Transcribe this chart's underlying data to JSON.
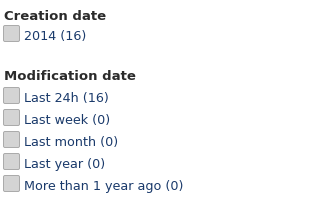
{
  "background_color": "#ffffff",
  "section1_header": "Creation date",
  "section1_items": [
    {
      "label": "2014 (16)"
    }
  ],
  "section2_header": "Modification date",
  "section2_items": [
    {
      "label": "Last 24h (16)"
    },
    {
      "label": "Last week (0)"
    },
    {
      "label": "Last month (0)"
    },
    {
      "label": "Last year (0)"
    },
    {
      "label": "More than 1 year ago (0)"
    }
  ],
  "header_color": "#2b2b2b",
  "item_color": "#1a3a6b",
  "checkbox_fill": "#d4d4d4",
  "checkbox_edge": "#aaaaaa",
  "header_fontsize": 9.5,
  "item_fontsize": 9.2,
  "fig_width": 3.12,
  "fig_height": 2.22,
  "dpi": 100
}
